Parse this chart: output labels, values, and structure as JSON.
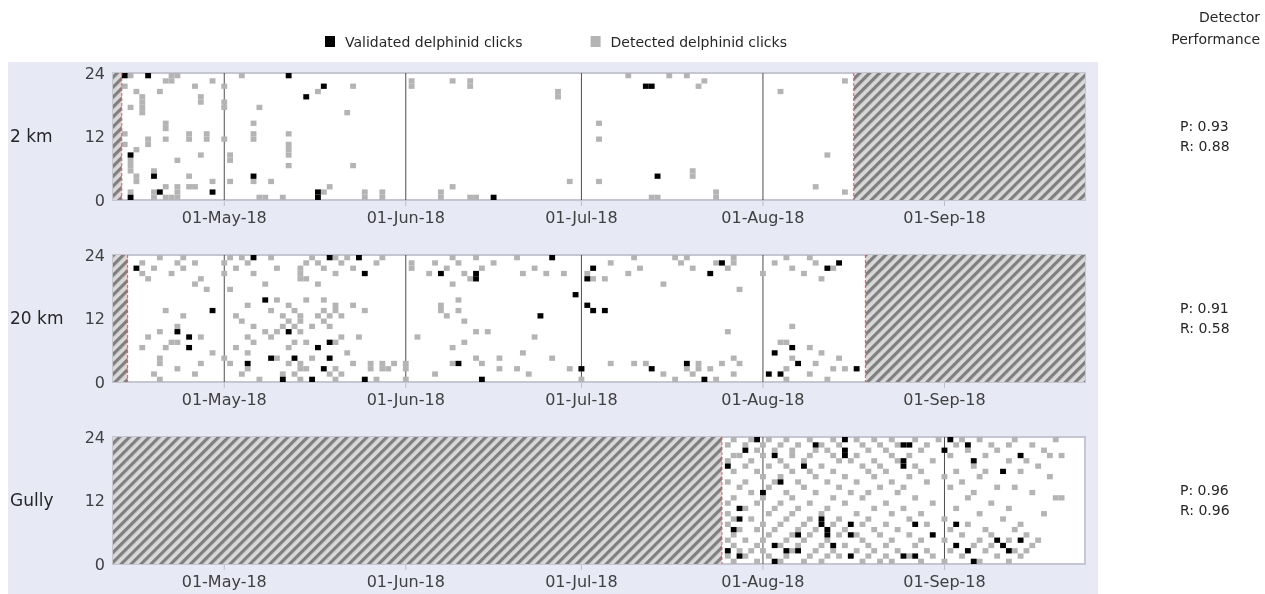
{
  "chart_data": [
    {
      "type": "scatter",
      "ylabel": "2 km",
      "legend": "top",
      "grid": "x",
      "marker": "square",
      "xlim": [
        "2018-04-12",
        "2018-09-25"
      ],
      "ylim": [
        0,
        24
      ],
      "yticks": [
        0,
        12,
        24
      ],
      "xticks": [
        {
          "value": "2018-05-01",
          "label": "01-May-18"
        },
        {
          "value": "2018-06-01",
          "label": "01-Jun-18"
        },
        {
          "value": "2018-07-01",
          "label": "01-Jul-18"
        },
        {
          "value": "2018-08-01",
          "label": "01-Aug-18"
        },
        {
          "value": "2018-09-01",
          "label": "01-Sep-18"
        }
      ],
      "bands": [
        {
          "axis": "x",
          "from": "2018-04-12",
          "to": "2018-04-13T12:00",
          "color": "#7f7f7f"
        },
        {
          "axis": "x",
          "from": "2018-08-16T12:00",
          "to": "2018-09-25",
          "color": "#7f7f7f"
        }
      ],
      "ref_lines": [
        {
          "axis": "x",
          "value": "2018-04-13T12:00",
          "color": "#e05a5a",
          "line_style": "dashed"
        },
        {
          "axis": "x",
          "value": "2018-08-16T12:00",
          "color": "#e05a5a",
          "line_style": "dashed"
        }
      ],
      "annotations": [
        "Detector Performance",
        "P: 0.93",
        "R: 0.88"
      ],
      "series": [
        {
          "name": "Detected delphinid clicks",
          "color": "#b4b4b4",
          "x": [
            "2018-04-15",
            "2018-04-22",
            "2018-04-23",
            "2018-05-04",
            "2018-07-09",
            "2018-07-16",
            "2018-07-19",
            "2018-08-15",
            "2018-04-21",
            "2018-04-22",
            "2018-04-29",
            "2018-06-02",
            "2018-06-09",
            "2018-06-12",
            "2018-07-22",
            "2018-04-14",
            "2018-04-26",
            "2018-05-01",
            "2018-05-23",
            "2018-06-02",
            "2018-06-12",
            "2018-07-21",
            "2018-04-16",
            "2018-05-17",
            "2018-04-20",
            "2018-06-27",
            "2018-08-04",
            "2018-04-17",
            "2018-04-27",
            "2018-06-27",
            "2018-04-17",
            "2018-04-27",
            "2018-05-01",
            "2018-04-15",
            "2018-04-17",
            "2018-05-07",
            "2018-05-01",
            "2018-04-17",
            "2018-05-22",
            "2018-04-21",
            "2018-05-06",
            "2018-07-04",
            "2018-04-21",
            "2018-04-14",
            "2018-04-25",
            "2018-04-28",
            "2018-05-12",
            "2018-05-06",
            "2018-04-18",
            "2018-04-21",
            "2018-04-25",
            "2018-04-28",
            "2018-05-01",
            "2018-05-06",
            "2018-07-04",
            "2018-04-14",
            "2018-04-18",
            "2018-05-12",
            "2018-04-16",
            "2018-05-12",
            "2018-04-27",
            "2018-05-02",
            "2018-05-12",
            "2018-08-12",
            "2018-04-23",
            "2018-04-15",
            "2018-05-02",
            "2018-04-15",
            "2018-05-12",
            "2018-05-23",
            "2018-04-15",
            "2018-04-19",
            "2018-07-20",
            "2018-04-16",
            "2018-04-25",
            "2018-07-20",
            "2018-04-16",
            "2018-04-29",
            "2018-05-02",
            "2018-05-06",
            "2018-05-09",
            "2018-06-29",
            "2018-07-04",
            "2018-04-21",
            "2018-04-23",
            "2018-04-25",
            "2018-04-26",
            "2018-05-19",
            "2018-06-09",
            "2018-08-10",
            "2018-04-15",
            "2018-04-19",
            "2018-04-23",
            "2018-05-18",
            "2018-05-25",
            "2018-05-28",
            "2018-06-07",
            "2018-07-24",
            "2018-08-15",
            "2018-04-19",
            "2018-04-21",
            "2018-04-23",
            "2018-04-22",
            "2018-05-07",
            "2018-05-08",
            "2018-05-11",
            "2018-06-07",
            "2018-06-12",
            "2018-06-13",
            "2018-07-13",
            "2018-07-14",
            "2018-07-24",
            "2018-05-28",
            "2018-05-25"
          ],
          "values": [
            23.5,
            23.5,
            23.5,
            23.5,
            23.5,
            23.5,
            23.5,
            22.5,
            22.5,
            22.5,
            22.5,
            22.5,
            22.5,
            22.5,
            22.5,
            21.5,
            21.5,
            21.5,
            21.5,
            21.5,
            21.5,
            21.5,
            20.5,
            20.5,
            20.5,
            20.5,
            20.5,
            19.5,
            19.5,
            19.5,
            18.5,
            18.5,
            18.5,
            17.5,
            17.5,
            17.5,
            17.5,
            16.5,
            16.5,
            14.5,
            14.5,
            14.5,
            13.5,
            12.5,
            12.5,
            12.5,
            12.5,
            12.5,
            11.5,
            11.5,
            11.5,
            11.5,
            11.5,
            11.5,
            11.5,
            10.5,
            10.5,
            10.5,
            9.5,
            9.5,
            8.5,
            8.5,
            8.5,
            8.5,
            7.5,
            7.5,
            7.5,
            6.5,
            6.5,
            6.5,
            5.5,
            5.5,
            5.5,
            4.5,
            4.5,
            4.5,
            3.5,
            3.5,
            3.5,
            3.5,
            3.5,
            3.5,
            3.5,
            2.5,
            2.5,
            2.5,
            2.5,
            2.5,
            2.5,
            2.5,
            1.5,
            1.5,
            1.5,
            1.5,
            1.5,
            1.5,
            1.5,
            1.5,
            1.5,
            0.5,
            0.5,
            0.5,
            0.5,
            0.5,
            0.5,
            0.5,
            0.5,
            0.5,
            0.5,
            0.5,
            0.5,
            0.5,
            0.5,
            0.5
          ]
        },
        {
          "name": "Validated delphinid clicks",
          "color": "#000000",
          "x": [
            "2018-04-14",
            "2018-04-18",
            "2018-05-12",
            "2018-05-18",
            "2018-05-15",
            "2018-07-12",
            "2018-07-13",
            "2018-04-15",
            "2018-04-19",
            "2018-05-06",
            "2018-07-14",
            "2018-04-15",
            "2018-04-20",
            "2018-04-29",
            "2018-05-17",
            "2018-05-17",
            "2018-06-16"
          ],
          "values": [
            23.5,
            23.5,
            23.5,
            21.5,
            19.5,
            21.5,
            21.5,
            8.5,
            4.5,
            4.5,
            4.5,
            0.5,
            1.5,
            1.5,
            1.5,
            0.5,
            0.5
          ]
        }
      ]
    },
    {
      "type": "scatter",
      "ylabel": "20 km",
      "grid": "x",
      "marker": "square",
      "xlim": [
        "2018-04-12",
        "2018-09-25"
      ],
      "ylim": [
        0,
        24
      ],
      "yticks": [
        0,
        12,
        24
      ],
      "xticks": [
        {
          "value": "2018-05-01",
          "label": "01-May-18"
        },
        {
          "value": "2018-06-01",
          "label": "01-Jun-18"
        },
        {
          "value": "2018-07-01",
          "label": "01-Jul-18"
        },
        {
          "value": "2018-08-01",
          "label": "01-Aug-18"
        },
        {
          "value": "2018-09-01",
          "label": "01-Sep-18"
        }
      ],
      "bands": [
        {
          "axis": "x",
          "from": "2018-04-12",
          "to": "2018-04-14T12:00",
          "color": "#7f7f7f"
        },
        {
          "axis": "x",
          "from": "2018-08-18T12:00",
          "to": "2018-09-25",
          "color": "#7f7f7f"
        }
      ],
      "ref_lines": [
        {
          "axis": "x",
          "value": "2018-04-14T12:00",
          "color": "#e05a5a",
          "line_style": "dashed"
        },
        {
          "axis": "x",
          "value": "2018-08-18T12:00",
          "color": "#e05a5a",
          "line_style": "dashed"
        }
      ],
      "annotations": [
        "P: 0.91",
        "R: 0.58"
      ],
      "series": [
        {
          "color": "#b4b4b4",
          "x": [
            "2018-04-20",
            "2018-04-24",
            "2018-05-02",
            "2018-05-04",
            "2018-05-09",
            "2018-05-16",
            "2018-05-20",
            "2018-05-22",
            "2018-05-28",
            "2018-06-09",
            "2018-06-13",
            "2018-06-20",
            "2018-07-10",
            "2018-07-17",
            "2018-07-19",
            "2018-07-27",
            "2018-08-05",
            "2018-08-09",
            "2018-04-17",
            "2018-04-23",
            "2018-04-26",
            "2018-05-01",
            "2018-05-05",
            "2018-05-15",
            "2018-05-17",
            "2018-05-21",
            "2018-05-27",
            "2018-06-02",
            "2018-06-06",
            "2018-06-10",
            "2018-06-16",
            "2018-07-06",
            "2018-07-18",
            "2018-07-24",
            "2018-07-27",
            "2018-08-03",
            "2018-08-10",
            "2018-04-19",
            "2018-04-24",
            "2018-05-03",
            "2018-05-10",
            "2018-05-14",
            "2018-05-18",
            "2018-05-23",
            "2018-06-02",
            "2018-06-08",
            "2018-06-14",
            "2018-06-23",
            "2018-07-11",
            "2018-07-20",
            "2018-07-26",
            "2018-08-06",
            "2018-08-13",
            "2018-04-17",
            "2018-04-22",
            "2018-05-01",
            "2018-05-06",
            "2018-05-14",
            "2018-05-20",
            "2018-06-05",
            "2018-06-11",
            "2018-06-21",
            "2018-06-25",
            "2018-06-28",
            "2018-07-02",
            "2018-07-09",
            "2018-08-01",
            "2018-08-08",
            "2018-04-18",
            "2018-04-27",
            "2018-05-14",
            "2018-05-15",
            "2018-06-12",
            "2018-07-05",
            "2018-07-03",
            "2018-08-11",
            "2018-04-26",
            "2018-05-08",
            "2018-05-17",
            "2018-07-15",
            "2018-06-09",
            "2018-05-02",
            "2018-04-28",
            "2018-07-28",
            "2018-05-10",
            "2018-05-15",
            "2018-05-18",
            "2018-06-10",
            "2018-05-05",
            "2018-05-12",
            "2018-05-20",
            "2018-05-23",
            "2018-06-07",
            "2018-04-21",
            "2018-05-09",
            "2018-05-13",
            "2018-05-18",
            "2018-05-20",
            "2018-05-25",
            "2018-06-07",
            "2018-06-10",
            "2018-04-24",
            "2018-05-03",
            "2018-05-11",
            "2018-05-14",
            "2018-05-17",
            "2018-05-19",
            "2018-05-21",
            "2018-06-08",
            "2018-05-04",
            "2018-05-12",
            "2018-05-14",
            "2018-05-18",
            "2018-06-11",
            "2018-04-23",
            "2018-05-06",
            "2018-05-11",
            "2018-05-13",
            "2018-05-16",
            "2018-05-19",
            "2018-08-06",
            "2018-04-20",
            "2018-05-08",
            "2018-05-10",
            "2018-05-14",
            "2018-06-13",
            "2018-06-15",
            "2018-07-26",
            "2018-04-18",
            "2018-04-27",
            "2018-05-05",
            "2018-05-09",
            "2018-05-21",
            "2018-05-24",
            "2018-06-03",
            "2018-06-23",
            "2018-04-22",
            "2018-04-23",
            "2018-05-06",
            "2018-05-13",
            "2018-05-15",
            "2018-05-20",
            "2018-06-11",
            "2018-08-04",
            "2018-08-05",
            "2018-04-17",
            "2018-04-21",
            "2018-05-03",
            "2018-05-12",
            "2018-06-09",
            "2018-08-09",
            "2018-04-29",
            "2018-05-05",
            "2018-05-22",
            "2018-06-21",
            "2018-08-11",
            "2018-04-20",
            "2018-05-01",
            "2018-05-10",
            "2018-05-16",
            "2018-06-13",
            "2018-06-17",
            "2018-06-26",
            "2018-07-27",
            "2018-08-06",
            "2018-08-14",
            "2018-04-20",
            "2018-04-27",
            "2018-05-02",
            "2018-05-12",
            "2018-05-14",
            "2018-05-23",
            "2018-05-26",
            "2018-05-28",
            "2018-05-30",
            "2018-06-01",
            "2018-06-09",
            "2018-06-14",
            "2018-07-06",
            "2018-07-10",
            "2018-07-12",
            "2018-07-21",
            "2018-07-25",
            "2018-07-28",
            "2018-08-10",
            "2018-04-23",
            "2018-05-05",
            "2018-05-14",
            "2018-05-15",
            "2018-05-20",
            "2018-05-26",
            "2018-05-28",
            "2018-05-29",
            "2018-06-01",
            "2018-06-17",
            "2018-06-20",
            "2018-06-29",
            "2018-07-01",
            "2018-07-19",
            "2018-07-21",
            "2018-07-23",
            "2018-08-05",
            "2018-08-13",
            "2018-08-15",
            "2018-04-19",
            "2018-04-26",
            "2018-05-04",
            "2018-05-11",
            "2018-05-13",
            "2018-05-19",
            "2018-05-21",
            "2018-06-06",
            "2018-06-22",
            "2018-07-15",
            "2018-07-20",
            "2018-07-27",
            "2018-08-09",
            "2018-04-20",
            "2018-05-07",
            "2018-05-14",
            "2018-05-20",
            "2018-05-27",
            "2018-06-01",
            "2018-07-01",
            "2018-07-17",
            "2018-07-24",
            "2018-08-05",
            "2018-08-12"
          ],
          "values": [
            23.5,
            23.5,
            23.5,
            23.5,
            23.5,
            23.5,
            23.5,
            23.5,
            23.5,
            23.5,
            23.5,
            23.5,
            23.5,
            23.5,
            23.5,
            23.5,
            23.5,
            23.5,
            22.5,
            22.5,
            22.5,
            22.5,
            22.5,
            22.5,
            22.5,
            22.5,
            22.5,
            22.5,
            22.5,
            22.5,
            22.5,
            22.5,
            22.5,
            22.5,
            22.5,
            22.5,
            22.5,
            21.5,
            21.5,
            21.5,
            21.5,
            21.5,
            21.5,
            21.5,
            21.5,
            21.5,
            21.5,
            21.5,
            21.5,
            21.5,
            21.5,
            21.5,
            21.5,
            20.5,
            20.5,
            20.5,
            20.5,
            20.5,
            20.5,
            20.5,
            20.5,
            20.5,
            20.5,
            20.5,
            20.5,
            20.5,
            20.5,
            20.5,
            19.5,
            19.5,
            19.5,
            19.5,
            19.5,
            19.5,
            19.5,
            19.5,
            18.5,
            18.5,
            18.5,
            18.5,
            18.5,
            17.5,
            17.5,
            17.5,
            15.5,
            15.5,
            15.5,
            15.5,
            14.5,
            14.5,
            14.5,
            14.5,
            14.5,
            13.5,
            13.5,
            13.5,
            13.5,
            13.5,
            13.5,
            13.5,
            13.5,
            12.5,
            12.5,
            12.5,
            12.5,
            12.5,
            12.5,
            12.5,
            12.5,
            11.5,
            11.5,
            11.5,
            11.5,
            11.5,
            10.5,
            10.5,
            10.5,
            10.5,
            10.5,
            10.5,
            10.5,
            9.5,
            9.5,
            9.5,
            9.5,
            9.5,
            9.5,
            9.5,
            8.5,
            8.5,
            8.5,
            8.5,
            8.5,
            8.5,
            8.5,
            8.5,
            7.5,
            7.5,
            7.5,
            7.5,
            7.5,
            7.5,
            7.5,
            7.5,
            7.5,
            6.5,
            6.5,
            6.5,
            6.5,
            6.5,
            6.5,
            5.5,
            5.5,
            5.5,
            5.5,
            5.5,
            4.5,
            4.5,
            4.5,
            4.5,
            4.5,
            4.5,
            4.5,
            4.5,
            4.5,
            4.5,
            3.5,
            3.5,
            3.5,
            3.5,
            3.5,
            3.5,
            3.5,
            3.5,
            3.5,
            3.5,
            3.5,
            3.5,
            3.5,
            3.5,
            3.5,
            3.5,
            3.5,
            3.5,
            3.5,
            2.5,
            2.5,
            2.5,
            2.5,
            2.5,
            2.5,
            2.5,
            2.5,
            2.5,
            2.5,
            2.5,
            2.5,
            2.5,
            2.5,
            2.5,
            2.5,
            2.5,
            2.5,
            2.5,
            1.5,
            1.5,
            1.5,
            1.5,
            1.5,
            1.5,
            1.5,
            1.5,
            1.5,
            1.5,
            1.5,
            1.5,
            1.5,
            0.5,
            0.5,
            0.5,
            0.5,
            0.5,
            0.5,
            0.5,
            0.5,
            0.5,
            0.5,
            0.5
          ]
        },
        {
          "color": "#000000",
          "x": [
            "2018-04-16",
            "2018-05-06",
            "2018-05-19",
            "2018-05-24",
            "2018-05-25",
            "2018-06-07",
            "2018-06-13",
            "2018-06-13",
            "2018-06-26",
            "2018-07-03",
            "2018-07-02",
            "2018-07-25",
            "2018-07-23",
            "2018-08-12",
            "2018-08-14",
            "2018-06-30",
            "2018-07-02",
            "2018-07-03",
            "2018-07-05",
            "2018-06-24",
            "2018-05-08",
            "2018-04-29",
            "2018-04-23",
            "2018-04-25",
            "2018-04-25",
            "2018-05-12",
            "2018-05-19",
            "2018-05-17",
            "2018-05-09",
            "2018-05-13",
            "2018-05-19",
            "2018-05-18",
            "2018-05-05",
            "2018-05-11",
            "2018-05-16",
            "2018-05-25",
            "2018-06-10",
            "2018-06-14",
            "2018-07-01",
            "2018-07-13",
            "2018-07-19",
            "2018-07-22",
            "2018-08-02",
            "2018-08-04",
            "2018-08-03",
            "2018-08-06",
            "2018-08-07",
            "2018-08-17"
          ],
          "values": [
            21.5,
            23.5,
            23.5,
            23.5,
            20.5,
            20.5,
            20.5,
            19.5,
            23.5,
            21.5,
            19.5,
            22.5,
            20.5,
            21.5,
            22.5,
            16.5,
            14.5,
            13.5,
            13.5,
            12.5,
            15.5,
            13.5,
            9.5,
            8.5,
            6.5,
            9.5,
            7.5,
            6.5,
            4.5,
            4.5,
            4.5,
            2.5,
            3.5,
            0.5,
            0.5,
            0.5,
            3.5,
            0.5,
            2.5,
            2.5,
            3.5,
            0.5,
            1.5,
            1.5,
            5.5,
            6.5,
            3.5,
            2.5
          ]
        }
      ]
    },
    {
      "type": "scatter",
      "ylabel": "Gully",
      "grid": "x",
      "marker": "square",
      "xlim": [
        "2018-04-12",
        "2018-09-25"
      ],
      "ylim": [
        0,
        24
      ],
      "yticks": [
        0,
        12,
        24
      ],
      "xticks": [
        {
          "value": "2018-05-01",
          "label": "01-May-18"
        },
        {
          "value": "2018-06-01",
          "label": "01-Jun-18"
        },
        {
          "value": "2018-07-01",
          "label": "01-Jul-18"
        },
        {
          "value": "2018-08-01",
          "label": "01-Aug-18"
        },
        {
          "value": "2018-09-01",
          "label": "01-Sep-18"
        }
      ],
      "bands": [
        {
          "axis": "x",
          "from": "2018-04-12",
          "to": "2018-07-25",
          "color": "#7f7f7f"
        }
      ],
      "ref_lines": [
        {
          "axis": "x",
          "value": "2018-07-25",
          "color": "#e05a5a",
          "line_style": "dashed"
        }
      ],
      "annotations": [
        "P: 0.96",
        "R: 0.96"
      ],
      "series": [
        {
          "color": "#b4b4b4",
          "x": [
            "2018-07-27",
            "2018-07-30",
            "2018-08-02",
            "2018-08-05",
            "2018-08-09",
            "2018-08-13",
            "2018-08-17",
            "2018-08-20",
            "2018-08-23",
            "2018-08-27",
            "2018-08-31",
            "2018-09-04",
            "2018-09-07",
            "2018-09-13",
            "2018-09-20",
            "2018-07-26",
            "2018-07-29",
            "2018-08-01",
            "2018-08-04",
            "2018-08-07",
            "2018-08-11",
            "2018-08-14",
            "2018-08-18",
            "2018-08-21",
            "2018-08-24",
            "2018-08-29",
            "2018-09-03",
            "2018-09-09",
            "2018-09-12",
            "2018-09-16",
            "2018-07-31",
            "2018-08-03",
            "2018-08-06",
            "2018-08-10",
            "2018-08-12",
            "2018-08-19",
            "2018-08-22",
            "2018-08-28",
            "2018-09-05",
            "2018-09-10",
            "2018-09-18",
            "2018-07-27",
            "2018-07-28",
            "2018-08-01",
            "2018-08-06",
            "2018-08-09",
            "2018-08-13",
            "2018-08-17",
            "2018-08-23",
            "2018-08-26",
            "2018-09-02",
            "2018-09-08",
            "2018-09-19",
            "2018-09-21",
            "2018-07-26",
            "2018-07-30",
            "2018-08-04",
            "2018-08-08",
            "2018-08-14",
            "2018-08-16",
            "2018-08-20",
            "2018-08-24",
            "2018-08-30",
            "2018-09-12",
            "2018-09-15",
            "2018-07-29",
            "2018-08-02",
            "2018-08-05",
            "2018-08-11",
            "2018-08-18",
            "2018-08-21",
            "2018-08-27",
            "2018-09-06",
            "2018-09-17",
            "2018-07-27",
            "2018-07-31",
            "2018-08-06",
            "2018-08-09",
            "2018-08-13",
            "2018-08-19",
            "2018-08-22",
            "2018-08-28",
            "2018-09-03",
            "2018-09-08",
            "2018-09-14",
            "2018-08-01",
            "2018-08-04",
            "2018-08-10",
            "2018-08-15",
            "2018-08-20",
            "2018-08-26",
            "2018-09-01",
            "2018-09-07",
            "2018-09-19",
            "2018-07-26",
            "2018-07-29",
            "2018-08-03",
            "2018-08-07",
            "2018-08-12",
            "2018-08-17",
            "2018-08-23",
            "2018-08-29",
            "2018-09-04",
            "2018-07-28",
            "2018-08-02",
            "2018-08-08",
            "2018-08-14",
            "2018-08-21",
            "2018-08-25",
            "2018-09-02",
            "2018-09-10",
            "2018-09-13",
            "2018-07-30",
            "2018-08-05",
            "2018-08-10",
            "2018-08-16",
            "2018-08-19",
            "2018-08-24",
            "2018-09-06",
            "2018-09-16",
            "2018-07-27",
            "2018-08-01",
            "2018-08-06",
            "2018-08-13",
            "2018-08-18",
            "2018-08-27",
            "2018-09-05",
            "2018-09-20",
            "2018-09-21",
            "2018-07-26",
            "2018-07-31",
            "2018-08-04",
            "2018-08-09",
            "2018-08-15",
            "2018-08-22",
            "2018-08-30",
            "2018-09-09",
            "2018-07-29",
            "2018-08-03",
            "2018-08-07",
            "2018-08-12",
            "2018-08-20",
            "2018-08-25",
            "2018-09-03",
            "2018-09-12",
            "2018-07-26",
            "2018-08-02",
            "2018-08-06",
            "2018-08-11",
            "2018-08-17",
            "2018-08-23",
            "2018-08-28",
            "2018-09-07",
            "2018-09-18",
            "2018-07-27",
            "2018-07-30",
            "2018-08-05",
            "2018-08-09",
            "2018-08-14",
            "2018-08-19",
            "2018-08-26",
            "2018-09-01",
            "2018-09-11",
            "2018-07-26",
            "2018-08-01",
            "2018-08-04",
            "2018-08-08",
            "2018-08-13",
            "2018-08-18",
            "2018-08-22",
            "2018-08-29",
            "2018-09-05",
            "2018-09-14",
            "2018-07-28",
            "2018-07-31",
            "2018-08-03",
            "2018-08-07",
            "2018-08-10",
            "2018-08-15",
            "2018-08-20",
            "2018-08-24",
            "2018-09-02",
            "2018-09-08",
            "2018-09-13",
            "2018-07-27",
            "2018-08-02",
            "2018-08-06",
            "2018-08-09",
            "2018-08-14",
            "2018-08-17",
            "2018-08-21",
            "2018-08-26",
            "2018-09-04",
            "2018-09-09",
            "2018-09-15",
            "2018-07-26",
            "2018-07-29",
            "2018-08-01",
            "2018-08-05",
            "2018-08-08",
            "2018-08-12",
            "2018-08-18",
            "2018-08-23",
            "2018-08-28",
            "2018-09-01",
            "2018-09-07",
            "2018-09-12",
            "2018-09-17",
            "2018-07-27",
            "2018-07-31",
            "2018-08-04",
            "2018-08-07",
            "2018-08-11",
            "2018-08-15",
            "2018-08-19",
            "2018-08-22",
            "2018-08-27",
            "2018-09-06",
            "2018-09-09",
            "2018-09-16",
            "2018-07-28",
            "2018-07-30",
            "2018-08-01",
            "2018-08-06",
            "2018-08-10",
            "2018-08-13",
            "2018-08-17",
            "2018-08-20",
            "2018-08-24",
            "2018-08-29",
            "2018-09-02",
            "2018-09-08",
            "2018-09-13",
            "2018-09-15",
            "2018-07-26",
            "2018-07-29",
            "2018-08-02",
            "2018-08-05",
            "2018-08-09",
            "2018-08-12",
            "2018-08-14",
            "2018-08-19",
            "2018-08-22",
            "2018-08-26",
            "2018-08-30",
            "2018-09-04",
            "2018-09-10",
            "2018-09-14",
            "2018-07-27",
            "2018-07-31",
            "2018-08-04",
            "2018-08-08",
            "2018-08-11",
            "2018-08-18",
            "2018-08-21",
            "2018-08-23",
            "2018-08-28",
            "2018-09-01",
            "2018-09-07",
            "2018-09-12"
          ],
          "values": [
            23.5,
            23.5,
            23.5,
            23.5,
            23.5,
            23.5,
            23.5,
            23.5,
            23.5,
            23.5,
            23.5,
            23.5,
            23.5,
            23.5,
            23.5,
            22.5,
            22.5,
            22.5,
            22.5,
            22.5,
            22.5,
            22.5,
            22.5,
            22.5,
            22.5,
            22.5,
            22.5,
            22.5,
            22.5,
            22.5,
            21.5,
            21.5,
            21.5,
            21.5,
            21.5,
            21.5,
            21.5,
            21.5,
            21.5,
            21.5,
            21.5,
            20.5,
            20.5,
            20.5,
            20.5,
            20.5,
            20.5,
            20.5,
            20.5,
            20.5,
            20.5,
            20.5,
            20.5,
            20.5,
            19.5,
            19.5,
            19.5,
            19.5,
            19.5,
            19.5,
            19.5,
            19.5,
            19.5,
            19.5,
            19.5,
            18.5,
            18.5,
            18.5,
            18.5,
            18.5,
            18.5,
            18.5,
            18.5,
            18.5,
            17.5,
            17.5,
            17.5,
            17.5,
            17.5,
            17.5,
            17.5,
            17.5,
            17.5,
            17.5,
            17.5,
            16.5,
            16.5,
            16.5,
            16.5,
            16.5,
            16.5,
            16.5,
            16.5,
            16.5,
            15.5,
            15.5,
            15.5,
            15.5,
            15.5,
            15.5,
            15.5,
            15.5,
            15.5,
            14.5,
            14.5,
            14.5,
            14.5,
            14.5,
            14.5,
            14.5,
            14.5,
            14.5,
            13.5,
            13.5,
            13.5,
            13.5,
            13.5,
            13.5,
            13.5,
            13.5,
            12.5,
            12.5,
            12.5,
            12.5,
            12.5,
            12.5,
            12.5,
            12.5,
            12.5,
            11.5,
            11.5,
            11.5,
            11.5,
            11.5,
            11.5,
            11.5,
            11.5,
            10.5,
            10.5,
            10.5,
            10.5,
            10.5,
            10.5,
            10.5,
            10.5,
            9.5,
            9.5,
            9.5,
            9.5,
            9.5,
            9.5,
            9.5,
            9.5,
            9.5,
            8.5,
            8.5,
            8.5,
            8.5,
            8.5,
            8.5,
            8.5,
            8.5,
            8.5,
            7.5,
            7.5,
            7.5,
            7.5,
            7.5,
            7.5,
            7.5,
            7.5,
            7.5,
            7.5,
            6.5,
            6.5,
            6.5,
            6.5,
            6.5,
            6.5,
            6.5,
            6.5,
            6.5,
            6.5,
            6.5,
            5.5,
            5.5,
            5.5,
            5.5,
            5.5,
            5.5,
            5.5,
            5.5,
            5.5,
            5.5,
            5.5,
            4.5,
            4.5,
            4.5,
            4.5,
            4.5,
            4.5,
            4.5,
            4.5,
            4.5,
            4.5,
            4.5,
            4.5,
            4.5,
            3.5,
            3.5,
            3.5,
            3.5,
            3.5,
            3.5,
            3.5,
            3.5,
            3.5,
            3.5,
            3.5,
            3.5,
            2.5,
            2.5,
            2.5,
            2.5,
            2.5,
            2.5,
            2.5,
            2.5,
            2.5,
            2.5,
            2.5,
            2.5,
            2.5,
            2.5,
            1.5,
            1.5,
            1.5,
            1.5,
            1.5,
            1.5,
            1.5,
            1.5,
            1.5,
            1.5,
            1.5,
            1.5,
            1.5,
            1.5,
            0.5,
            0.5,
            0.5,
            0.5,
            0.5,
            0.5,
            0.5,
            0.5,
            0.5,
            0.5,
            0.5,
            0.5
          ]
        },
        {
          "color": "#000000",
          "x": [
            "2018-07-31",
            "2018-07-29",
            "2018-08-03",
            "2018-07-26",
            "2018-08-08",
            "2018-08-10",
            "2018-08-15",
            "2018-08-15",
            "2018-08-15",
            "2018-08-25",
            "2018-08-26",
            "2018-08-25",
            "2018-08-25",
            "2018-09-01",
            "2018-09-02",
            "2018-09-05",
            "2018-09-06",
            "2018-09-14",
            "2018-09-11",
            "2018-08-04",
            "2018-08-01",
            "2018-07-28",
            "2018-07-28",
            "2018-07-27",
            "2018-07-26",
            "2018-07-28",
            "2018-08-03",
            "2018-08-03",
            "2018-08-05",
            "2018-08-07",
            "2018-08-07",
            "2018-08-11",
            "2018-08-11",
            "2018-08-12",
            "2018-08-12",
            "2018-08-13",
            "2018-08-16",
            "2018-08-16",
            "2018-08-16",
            "2018-08-25",
            "2018-08-27",
            "2018-08-27",
            "2018-08-30",
            "2018-09-03",
            "2018-09-03",
            "2018-09-05",
            "2018-09-06",
            "2018-09-10",
            "2018-09-11",
            "2018-09-12",
            "2018-09-14"
          ],
          "values": [
            23.5,
            21.5,
            20.5,
            18.5,
            18.5,
            22.5,
            23.5,
            21.5,
            20.5,
            22.5,
            22.5,
            19.5,
            18.5,
            21.5,
            23.5,
            22.5,
            19.5,
            20.5,
            17.5,
            15.5,
            13.5,
            10.5,
            8.5,
            6.5,
            2.5,
            1.5,
            0.5,
            3.5,
            2.5,
            2.5,
            5.5,
            8.5,
            7.5,
            6.5,
            5.5,
            3.5,
            7.5,
            5.5,
            1.5,
            1.5,
            1.5,
            7.5,
            5.5,
            7.5,
            3.5,
            2.5,
            0.5,
            4.5,
            3.5,
            2.5,
            4.5
          ]
        }
      ]
    }
  ]
}
